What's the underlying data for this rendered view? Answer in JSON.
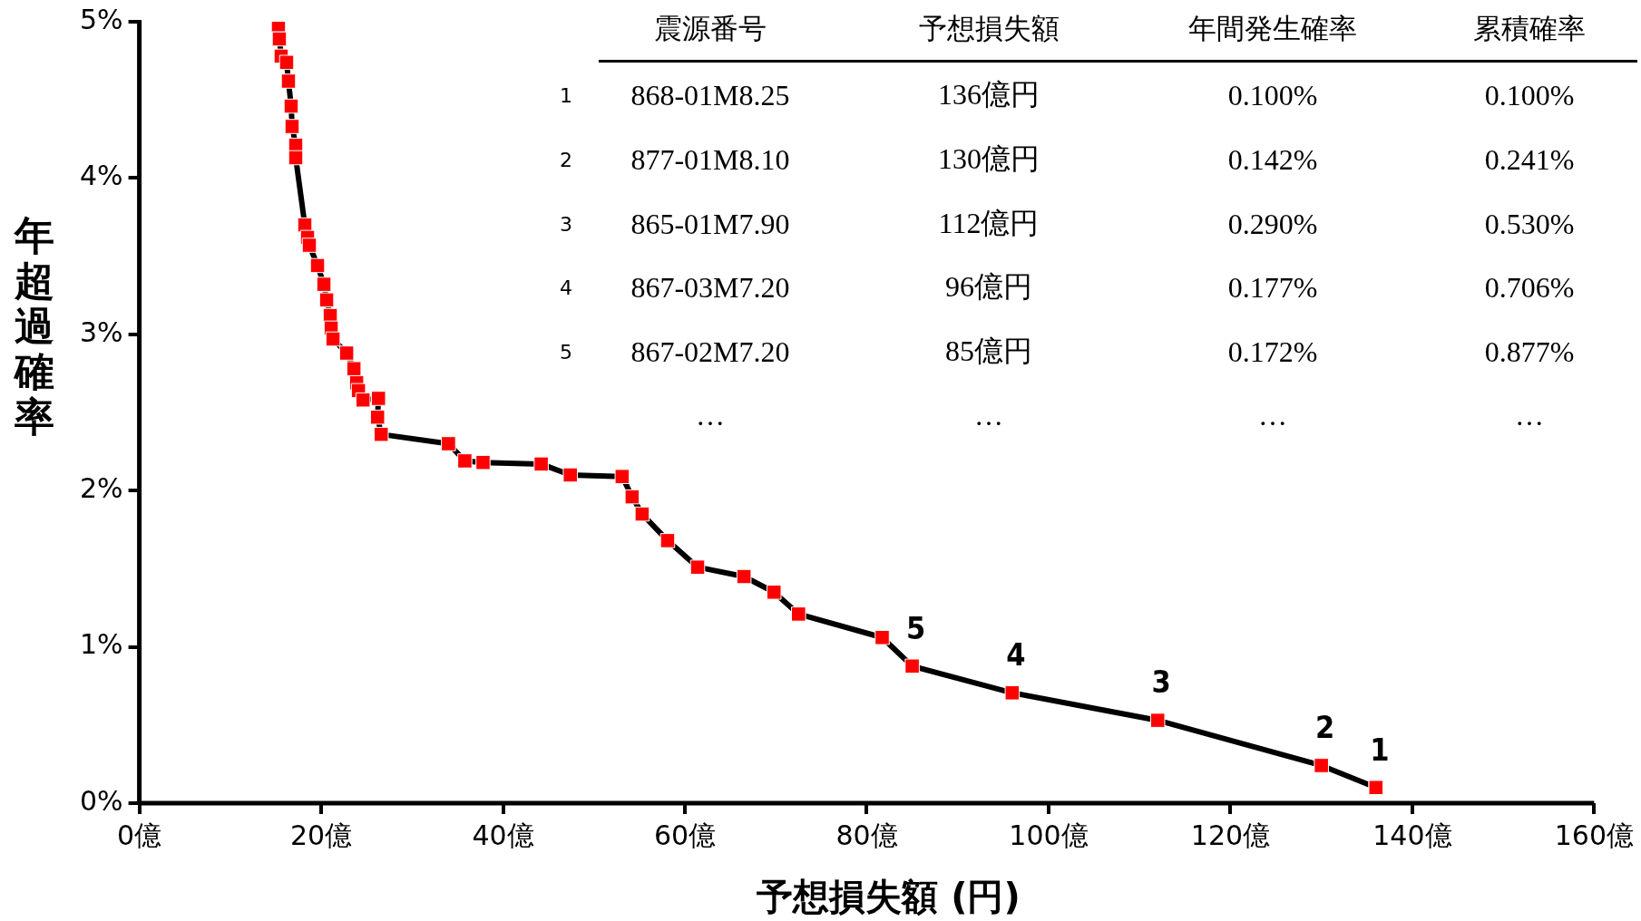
{
  "chart_data": {
    "type": "line",
    "xlabel": "予想損失額 (円)",
    "ylabel": "年超過確率",
    "xlim": [
      0,
      160
    ],
    "xticks": [
      {
        "value": 0,
        "label": "0億"
      },
      {
        "value": 20,
        "label": "20億"
      },
      {
        "value": 40,
        "label": "40億"
      },
      {
        "value": 60,
        "label": "60億"
      },
      {
        "value": 80,
        "label": "80億"
      },
      {
        "value": 100,
        "label": "100億"
      },
      {
        "value": 120,
        "label": "120億"
      },
      {
        "value": 140,
        "label": "140億"
      },
      {
        "value": 160,
        "label": "160億"
      }
    ],
    "ylim": [
      0,
      5
    ],
    "yticks": [
      {
        "value": 0,
        "label": "0%"
      },
      {
        "value": 1,
        "label": "1%"
      },
      {
        "value": 2,
        "label": "2%"
      },
      {
        "value": 3,
        "label": "3%"
      },
      {
        "value": 4,
        "label": "4%"
      },
      {
        "value": 5,
        "label": "5%"
      }
    ],
    "grid": false,
    "legend": false,
    "marker": "square",
    "line_style": "solid",
    "series": [
      {
        "color": "#000000",
        "colors": [
          "#ff0000",
          "#ff0000",
          "#ff0000",
          "#ff0000",
          "#ff0000",
          "#ff0000",
          "#ff0000",
          "#ff0000",
          "#ff0000",
          "#ff0000",
          "#ff0000",
          "#ff0000",
          "#ff0000",
          "#ff0000",
          "#ff0000",
          "#ff0000",
          "#ff0000",
          "#ff0000",
          "#ff0000",
          "#ff0000",
          "#ff0000",
          "#ff0000",
          "#ff0000",
          "#ff0000",
          "#ff0000",
          "#ff0000",
          "#ff0000",
          "#ff0000",
          "#ff0000",
          "#ff0000",
          "#ff0000",
          "#ff0000",
          "#ff0000",
          "#ff0000",
          "#ff0000",
          "#ff0000",
          "#ff0000",
          "#ff0000",
          "#ff0000",
          "#ff0000",
          "#ff0000",
          "#ff0000",
          "#ff0000",
          "#ff0000",
          "#ff0000",
          "#ff0000"
        ],
        "x": [
          15.3,
          15.4,
          15.6,
          16.2,
          16.4,
          16.7,
          16.8,
          17.2,
          17.2,
          18.2,
          18.5,
          18.7,
          19.6,
          20.3,
          20.6,
          21.0,
          21.1,
          21.3,
          22.8,
          23.6,
          23.9,
          24.1,
          24.6,
          26.3,
          26.2,
          26.6,
          34.0,
          35.8,
          37.8,
          44.2,
          47.4,
          53.1,
          54.2,
          55.3,
          58.1,
          61.4,
          66.5,
          69.8,
          72.5,
          81.7,
          85,
          96,
          112,
          130,
          136,
          136
        ],
        "values": [
          4.98,
          4.89,
          4.78,
          4.74,
          4.62,
          4.46,
          4.33,
          4.21,
          4.13,
          3.7,
          3.62,
          3.57,
          3.44,
          3.32,
          3.22,
          3.12,
          3.04,
          2.97,
          2.88,
          2.78,
          2.69,
          2.64,
          2.58,
          2.59,
          2.47,
          2.36,
          2.3,
          2.19,
          2.18,
          2.17,
          2.1,
          2.09,
          1.96,
          1.85,
          1.68,
          1.51,
          1.45,
          1.35,
          1.21,
          1.06,
          0.877,
          0.706,
          0.53,
          0.241,
          0.1,
          0.1
        ]
      }
    ],
    "annotations": [
      {
        "text": "1",
        "x": 136,
        "y": 0.1
      },
      {
        "text": "2",
        "x": 130,
        "y": 0.241
      },
      {
        "text": "3",
        "x": 112,
        "y": 0.53
      },
      {
        "text": "4",
        "x": 96,
        "y": 0.706
      },
      {
        "text": "5",
        "x": 85,
        "y": 0.877
      },
      "震源番号",
      "予想損失額",
      "年間発生確率",
      "累積確率",
      "1",
      "868-01M8.25",
      "136億円",
      "0.100%",
      "0.100%",
      "2",
      "877-01M8.10",
      "130億円",
      "0.142%",
      "0.241%",
      "3",
      "865-01M7.90",
      "112億円",
      "0.290%",
      "0.530%",
      "4",
      "867-03M7.20",
      "96億円",
      "0.177%",
      "0.706%",
      "5",
      "867-02M7.20",
      "85億円",
      "0.172%",
      "0.877%",
      "…",
      "…",
      "…",
      "…"
    ]
  }
}
